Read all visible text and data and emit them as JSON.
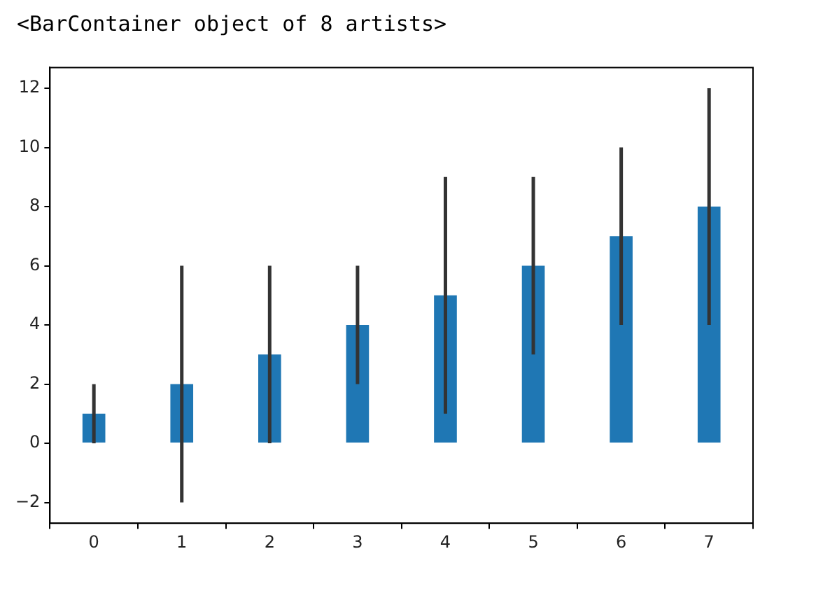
{
  "chart_data": {
    "type": "bar",
    "annotations": [
      "<BarContainer object of 8 artists>"
    ],
    "categories": [
      "0",
      "1",
      "2",
      "3",
      "4",
      "5",
      "6",
      "7"
    ],
    "values": [
      1,
      2,
      3,
      4,
      5,
      6,
      7,
      8
    ],
    "errors": [
      1,
      4,
      3,
      2,
      4,
      3,
      3,
      4
    ],
    "color": "#1f77b4",
    "ylim": [
      -2.7,
      12.7
    ],
    "yticks": [
      {
        "value": -2,
        "label": "−2"
      },
      0,
      2,
      4,
      6,
      8,
      10,
      12
    ],
    "grid": false,
    "legend": false
  }
}
